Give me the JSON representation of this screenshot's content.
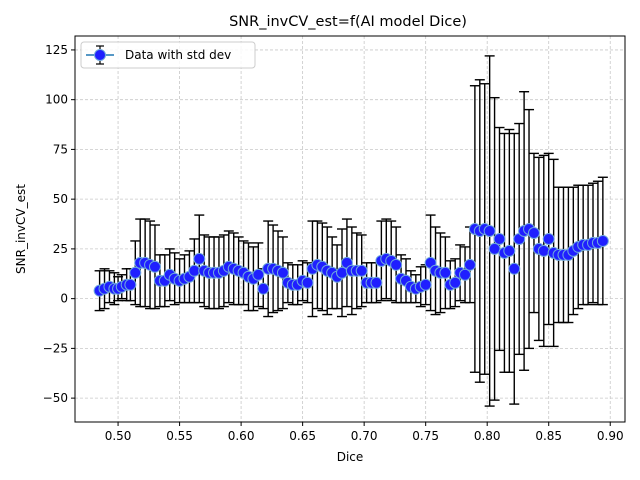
{
  "chart_data": {
    "type": "scatter",
    "title": "SNR_invCV_est=f(AI model Dice)",
    "xlabel": "Dice",
    "ylabel": "SNR_invCV_est",
    "xlim": [
      0.465,
      0.912
    ],
    "ylim": [
      -62,
      132
    ],
    "xticks": [
      0.5,
      0.55,
      0.6,
      0.65,
      0.7,
      0.75,
      0.8,
      0.85,
      0.9
    ],
    "xtick_labels": [
      "0.50",
      "0.55",
      "0.60",
      "0.65",
      "0.70",
      "0.75",
      "0.80",
      "0.85",
      "0.90"
    ],
    "yticks": [
      -50,
      -25,
      0,
      25,
      50,
      75,
      100,
      125
    ],
    "ytick_labels": [
      "−50",
      "−25",
      "0",
      "25",
      "50",
      "75",
      "100",
      "125"
    ],
    "grid": true,
    "legend": {
      "position": "top-left",
      "entries": [
        "Data with std dev"
      ]
    },
    "colors": {
      "marker_fill": "#1f1fff",
      "marker_edge": "#6fa8dc",
      "legend_line": "#1f77b4",
      "errorbar": "#000000",
      "grid": "#c8c8c8"
    },
    "series": [
      {
        "name": "Data with std dev",
        "x": [
          0.485,
          0.489,
          0.493,
          0.497,
          0.5,
          0.503,
          0.507,
          0.51,
          0.514,
          0.518,
          0.522,
          0.526,
          0.53,
          0.534,
          0.538,
          0.542,
          0.546,
          0.55,
          0.554,
          0.558,
          0.562,
          0.566,
          0.57,
          0.574,
          0.578,
          0.582,
          0.586,
          0.59,
          0.594,
          0.598,
          0.602,
          0.606,
          0.61,
          0.614,
          0.618,
          0.622,
          0.626,
          0.63,
          0.634,
          0.638,
          0.642,
          0.646,
          0.65,
          0.654,
          0.658,
          0.662,
          0.666,
          0.67,
          0.674,
          0.678,
          0.682,
          0.686,
          0.69,
          0.694,
          0.698,
          0.702,
          0.706,
          0.71,
          0.714,
          0.718,
          0.722,
          0.726,
          0.73,
          0.734,
          0.738,
          0.742,
          0.746,
          0.75,
          0.754,
          0.758,
          0.762,
          0.766,
          0.77,
          0.774,
          0.778,
          0.782,
          0.786,
          0.79,
          0.794,
          0.798,
          0.802,
          0.806,
          0.81,
          0.814,
          0.818,
          0.822,
          0.826,
          0.83,
          0.834,
          0.838,
          0.842,
          0.846,
          0.85,
          0.854,
          0.858,
          0.862,
          0.866,
          0.87,
          0.874,
          0.878,
          0.882,
          0.886,
          0.89,
          0.894
        ],
        "y": [
          4,
          5,
          6,
          5,
          5,
          6,
          7,
          7,
          13,
          18,
          18,
          17,
          16,
          9,
          9,
          12,
          10,
          9,
          10,
          11,
          14,
          20,
          14,
          13,
          13,
          13,
          14,
          16,
          15,
          14,
          13,
          11,
          10,
          12,
          5,
          15,
          15,
          14,
          13,
          8,
          7,
          7,
          9,
          8,
          15,
          17,
          16,
          14,
          13,
          11,
          13,
          18,
          14,
          14,
          14,
          8,
          8,
          8,
          19,
          20,
          19,
          17,
          10,
          9,
          6,
          5,
          6,
          7,
          18,
          14,
          13,
          13,
          7,
          8,
          13,
          12,
          17,
          35,
          34,
          35,
          34,
          25,
          30,
          23,
          24,
          15,
          30,
          34,
          35,
          33,
          25,
          24,
          30,
          23,
          22,
          22,
          22,
          24,
          26,
          27,
          27,
          28,
          28,
          29
        ],
        "err": [
          10,
          10,
          8,
          8,
          6,
          6,
          8,
          8,
          16,
          22,
          22,
          22,
          21,
          13,
          13,
          13,
          13,
          11,
          12,
          13,
          16,
          22,
          18,
          18,
          18,
          18,
          18,
          18,
          18,
          17,
          16,
          17,
          16,
          16,
          10,
          24,
          22,
          20,
          18,
          10,
          10,
          10,
          10,
          10,
          24,
          22,
          22,
          22,
          18,
          16,
          22,
          22,
          22,
          19,
          18,
          10,
          10,
          10,
          20,
          20,
          20,
          19,
          12,
          11,
          8,
          7,
          10,
          10,
          24,
          22,
          20,
          18,
          12,
          12,
          14,
          14,
          19,
          72,
          76,
          73,
          88,
          76,
          56,
          60,
          61,
          68,
          58,
          70,
          60,
          40,
          46,
          48,
          43,
          47,
          34,
          34,
          34,
          32,
          31,
          30,
          30,
          30,
          31,
          32
        ]
      }
    ]
  }
}
